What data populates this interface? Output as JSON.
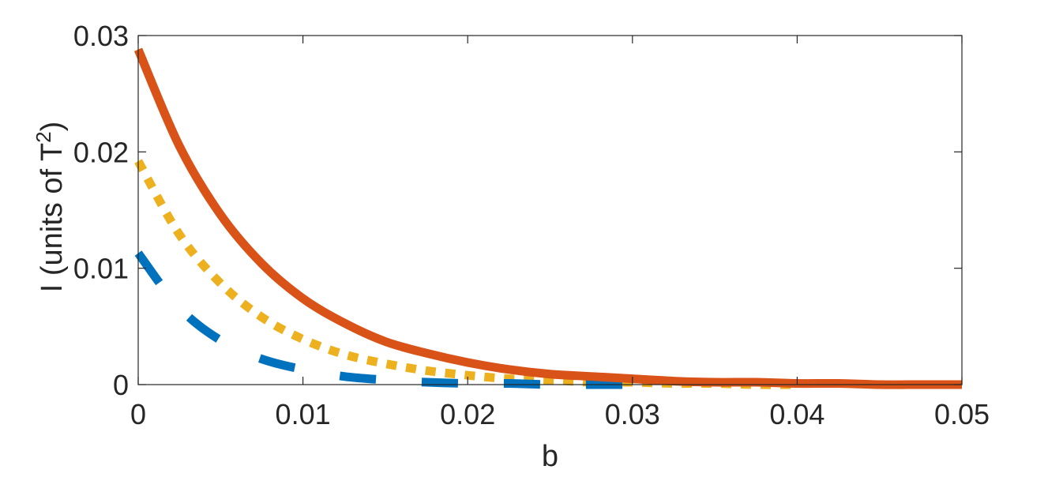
{
  "chart_data": {
    "type": "line",
    "title": "",
    "xlabel": "b",
    "ylabel": "I (units of T",
    "ylabel_superscript": "2",
    "ylabel_suffix": ")",
    "xlim": [
      0,
      0.05
    ],
    "ylim": [
      0,
      0.03
    ],
    "xticks": [
      0,
      0.01,
      0.02,
      0.03,
      0.04,
      0.05
    ],
    "xtick_labels": [
      "0",
      "0.01",
      "0.02",
      "0.03",
      "0.04",
      "0.05"
    ],
    "yticks": [
      0,
      0.01,
      0.02,
      0.03
    ],
    "ytick_labels": [
      "0",
      "0.01",
      "0.02",
      "0.03"
    ],
    "grid": false,
    "legend": "none",
    "x": [
      0,
      0.0025,
      0.005,
      0.0075,
      0.01,
      0.0125,
      0.015,
      0.0175,
      0.02,
      0.0225,
      0.025,
      0.0275,
      0.03,
      0.0325,
      0.035,
      0.0375,
      0.04,
      0.0425,
      0.045,
      0.0475,
      0.05
    ],
    "series": [
      {
        "style": "solid",
        "color": "#D95319",
        "values": [
          0.0288,
          0.0205,
          0.0146,
          0.0104,
          0.0074,
          0.0053,
          0.0037,
          0.0027,
          0.0019,
          0.0013,
          0.0009,
          0.0007,
          0.0005,
          0.0003,
          0.0002,
          0.0002,
          0.0001,
          0.0001,
          0.0,
          0.0,
          0.0
        ]
      },
      {
        "style": "dotted",
        "color": "#EDB120",
        "values": [
          0.0192,
          0.0129,
          0.0087,
          0.0058,
          0.0039,
          0.0026,
          0.0018,
          0.0012,
          0.0008,
          0.0005,
          0.0004,
          0.0002,
          0.0002,
          0.0001,
          0.0001,
          0.0,
          0.0,
          null,
          null,
          null,
          null
        ]
      },
      {
        "style": "dashed",
        "color": "#0072BD",
        "values": [
          0.0113,
          0.0066,
          0.0038,
          0.0022,
          0.0013,
          0.0007,
          0.0004,
          0.0002,
          0.0001,
          0.0001,
          0.0,
          0.0,
          0.0,
          null,
          null,
          null,
          null,
          null,
          null,
          null,
          null
        ]
      }
    ]
  }
}
